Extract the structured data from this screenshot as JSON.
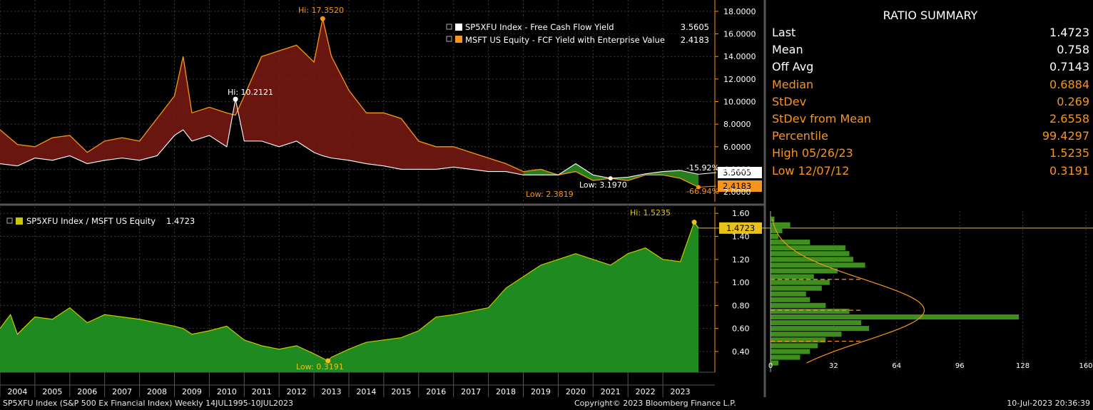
{
  "summary": {
    "title": "RATIO SUMMARY",
    "rows": [
      {
        "label": "Last",
        "value": "1.4723",
        "color": "#ffffff"
      },
      {
        "label": "Mean",
        "value": "0.758",
        "color": "#ffffff"
      },
      {
        "label": "Off Avg",
        "value": "0.7143",
        "color": "#ffffff"
      },
      {
        "label": "Median",
        "value": "0.6884",
        "color": "#f7941d"
      },
      {
        "label": "StDev",
        "value": "0.269",
        "color": "#f7941d"
      },
      {
        "label": "StDev from Mean",
        "value": "2.6558",
        "color": "#f7941d"
      },
      {
        "label": "Percentile",
        "value": "99.4297",
        "color": "#f7941d"
      },
      {
        "label": "High 05/26/23",
        "value": "1.5235",
        "color": "#f7941d"
      },
      {
        "label": "Low 12/07/12",
        "value": "0.3191",
        "color": "#f7941d"
      }
    ]
  },
  "footer": {
    "left": "SP5XFU Index (S&P 500 Ex Financial Index)  Weekly 14JUL1995-10JUL2023",
    "center": "Copyright© 2023 Bloomberg Finance L.P.",
    "right": "10-Jul-2023 20:36:39"
  },
  "colors": {
    "orange": "#f7941d",
    "white": "#ffffff",
    "maroon_fill": "#7a1a12",
    "green_fill": "#1f8a1f",
    "ratio_line": "#c8c800",
    "yellow_tag": "#e8c21a",
    "grid": "#3a3a3a"
  },
  "chart_data": [
    {
      "type": "line",
      "legend": [
        {
          "name": "SP5XFU Index - Free Cash Flow Yield",
          "value": "3.5605",
          "color": "#ffffff"
        },
        {
          "name": "MSFT US Equity - FCF Yield with Enterprise Value",
          "value": "2.4183",
          "color": "#f7941d"
        }
      ],
      "ylim": [
        1.5,
        18.5
      ],
      "yticks": [
        "2.0000",
        "4.0000",
        "6.0000",
        "8.0000",
        "10.0000",
        "12.0000",
        "14.0000",
        "16.0000",
        "18.0000"
      ],
      "x": [
        2003.5,
        2004.0,
        2004.5,
        2005.0,
        2005.5,
        2006.0,
        2006.5,
        2007.0,
        2007.5,
        2008.0,
        2008.5,
        2008.75,
        2009.0,
        2009.5,
        2010.0,
        2010.25,
        2010.5,
        2011.0,
        2011.5,
        2012.0,
        2012.5,
        2012.75,
        2013.0,
        2013.5,
        2014.0,
        2014.5,
        2015.0,
        2015.5,
        2016.0,
        2016.5,
        2017.0,
        2017.5,
        2018.0,
        2018.5,
        2019.0,
        2019.5,
        2020.0,
        2020.5,
        2021.0,
        2021.5,
        2022.0,
        2022.5,
        2023.0,
        2023.52
      ],
      "series": [
        {
          "name": "MSFT US Equity - FCF Yield with Enterprise Value",
          "values": [
            7.5,
            6.2,
            6.0,
            6.8,
            7.0,
            5.5,
            6.5,
            6.8,
            6.5,
            8.5,
            10.5,
            14.0,
            9.0,
            9.5,
            9.0,
            8.8,
            10.5,
            14.0,
            14.5,
            15.0,
            13.5,
            17.35,
            14.0,
            11.0,
            9.0,
            9.0,
            8.5,
            6.5,
            6.0,
            6.0,
            5.5,
            5.0,
            4.5,
            3.8,
            4.0,
            3.5,
            3.8,
            3.0,
            3.2,
            3.0,
            3.5,
            3.5,
            3.2,
            2.4183
          ]
        },
        {
          "name": "SP5XFU Index - Free Cash Flow Yield",
          "values": [
            4.5,
            4.3,
            5.0,
            4.8,
            5.2,
            4.5,
            4.8,
            5.0,
            4.8,
            5.2,
            7.0,
            7.5,
            6.5,
            7.0,
            6.0,
            10.2121,
            6.5,
            6.5,
            6.0,
            6.5,
            5.5,
            5.2,
            5.0,
            4.8,
            4.5,
            4.3,
            4.0,
            4.0,
            4.0,
            4.2,
            4.0,
            3.8,
            3.8,
            3.5,
            3.5,
            3.5,
            4.5,
            3.5,
            3.2,
            3.3,
            3.6,
            3.8,
            3.9,
            3.5605
          ]
        }
      ],
      "annotations": [
        {
          "text": "Hi: 17.3520",
          "color": "#f7941d"
        },
        {
          "text": "Hi: 10.2121",
          "color": "#ffffff"
        },
        {
          "text": "Low: 3.1970",
          "color": "#ffffff"
        },
        {
          "text": "Low: 2.3819",
          "color": "#f7941d"
        }
      ],
      "change_labels": [
        {
          "text": "-15.92%",
          "color": "#ffffff"
        },
        {
          "text": "-66.94%",
          "color": "#f7941d"
        }
      ],
      "last_tags": [
        {
          "text": "3.5605",
          "value": 3.5605,
          "bg": "#ffffff",
          "fg": "#000000"
        },
        {
          "text": "2.4183",
          "value": 2.4183,
          "bg": "#f7941d",
          "fg": "#000000"
        }
      ]
    },
    {
      "type": "area",
      "legend": [
        {
          "name": "SP5XFU Index / MSFT US Equity",
          "value": "1.4723",
          "color": "#c8c800"
        }
      ],
      "ylim": [
        0.22,
        1.62
      ],
      "yticks": [
        "0.40",
        "0.60",
        "0.80",
        "1.00",
        "1.20",
        "1.40",
        "1.60"
      ],
      "x": [
        2003.5,
        2003.8,
        2004.0,
        2004.5,
        2005.0,
        2005.5,
        2006.0,
        2006.5,
        2007.0,
        2007.5,
        2008.0,
        2008.5,
        2008.75,
        2009.0,
        2009.5,
        2010.0,
        2010.5,
        2011.0,
        2011.5,
        2012.0,
        2012.5,
        2012.9,
        2013.0,
        2013.5,
        2014.0,
        2014.5,
        2015.0,
        2015.5,
        2016.0,
        2016.5,
        2017.0,
        2017.5,
        2018.0,
        2018.5,
        2019.0,
        2019.5,
        2020.0,
        2020.5,
        2021.0,
        2021.5,
        2022.0,
        2022.5,
        2023.0,
        2023.4,
        2023.52
      ],
      "values": [
        0.6,
        0.72,
        0.55,
        0.7,
        0.68,
        0.78,
        0.65,
        0.72,
        0.7,
        0.68,
        0.65,
        0.62,
        0.6,
        0.55,
        0.58,
        0.62,
        0.5,
        0.45,
        0.42,
        0.45,
        0.38,
        0.3191,
        0.35,
        0.42,
        0.48,
        0.5,
        0.52,
        0.58,
        0.7,
        0.72,
        0.75,
        0.78,
        0.95,
        1.05,
        1.15,
        1.2,
        1.25,
        1.2,
        1.15,
        1.25,
        1.3,
        1.2,
        1.18,
        1.5235,
        1.4723
      ],
      "annotations": [
        {
          "text": "Hi: 1.5235",
          "color": "#e8c21a"
        },
        {
          "text": "Low: 0.3191",
          "color": "#e8c21a"
        }
      ],
      "last_tag": {
        "text": "1.4723",
        "value": 1.4723
      }
    },
    {
      "type": "bar",
      "orientation": "horizontal",
      "xlim": [
        0,
        160
      ],
      "xticks": [
        "0",
        "32",
        "64",
        "96",
        "128",
        "160"
      ],
      "bins": [
        1.55,
        1.5,
        1.45,
        1.4,
        1.35,
        1.3,
        1.25,
        1.2,
        1.15,
        1.1,
        1.05,
        1.0,
        0.95,
        0.9,
        0.85,
        0.8,
        0.75,
        0.7,
        0.65,
        0.6,
        0.55,
        0.5,
        0.45,
        0.4,
        0.35,
        0.3
      ],
      "counts": [
        2,
        10,
        6,
        4,
        20,
        38,
        40,
        42,
        48,
        34,
        22,
        30,
        26,
        18,
        20,
        28,
        40,
        126,
        46,
        50,
        36,
        28,
        24,
        20,
        15,
        4
      ],
      "mean": 0.758,
      "sd_lines": [
        1.027,
        0.758,
        0.489
      ]
    }
  ],
  "x_axis": {
    "years": [
      "2004",
      "2005",
      "2006",
      "2007",
      "2008",
      "2009",
      "2010",
      "2011",
      "2012",
      "2013",
      "2014",
      "2015",
      "2016",
      "2017",
      "2018",
      "2019",
      "2020",
      "2021",
      "2022",
      "2023"
    ]
  }
}
